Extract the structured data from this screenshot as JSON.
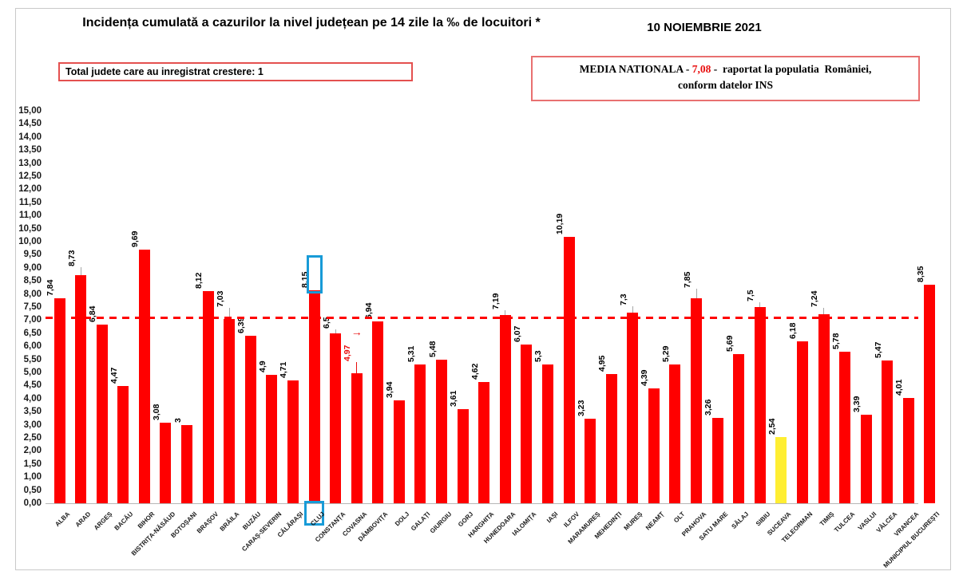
{
  "header": {
    "title": "Incidența cumulată a cazurilor la nivel județean pe 14 zile la ‰ de locuitori *",
    "date": "10 NOIEMBRIE 2021",
    "growth_box": "Total judete care au inregistrat crestere: 1",
    "media": {
      "part1": "MEDIA NATIONALA - ",
      "value": "7,08",
      "part3": " -  raportat la populatia  României,",
      "line2": "conform datelor INS"
    }
  },
  "chart_data": {
    "type": "bar",
    "title": "Incidența cumulată a cazurilor la nivel județean pe 14 zile la ‰ de locuitori *",
    "date_label": "10 NOIEMBRIE 2021",
    "xlabel": "",
    "ylabel": "",
    "ylim": [
      0,
      15
    ],
    "ytick_step": 0.5,
    "grid": false,
    "legend": "none",
    "average_line": 7.08,
    "bar_color": "#ff0000",
    "yellow_bar_color": "#ffee32",
    "highlight_box_color": "#189bd7",
    "red_label_color": "#e80d0d",
    "arrow_glyph": "→",
    "bars": [
      {
        "county": "ALBA",
        "value": 7.84,
        "label": "7,84"
      },
      {
        "county": "ARAD",
        "value": 8.73,
        "label": "8,73",
        "raise": 8
      },
      {
        "county": "ARGEȘ",
        "value": 6.84,
        "label": "6,84"
      },
      {
        "county": "BACĂU",
        "value": 4.47,
        "label": "4,47"
      },
      {
        "county": "BIHOR",
        "value": 9.69,
        "label": "9,69"
      },
      {
        "county": "BISTRIȚA-NĂSĂUD",
        "value": 3.08,
        "label": "3,08"
      },
      {
        "county": "BOTOȘANI",
        "value": 3.0,
        "label": "3"
      },
      {
        "county": "BRAȘOV",
        "value": 8.12,
        "label": "8,12"
      },
      {
        "county": "BRĂILA",
        "value": 7.03,
        "label": "7,03",
        "raise": 12
      },
      {
        "county": "BUZĂU",
        "value": 6.39,
        "label": "6,39"
      },
      {
        "county": "CARAȘ-SEVERIN",
        "value": 4.9,
        "label": "4,9"
      },
      {
        "county": "CĂLĂRAȘI",
        "value": 4.71,
        "label": "4,71"
      },
      {
        "county": "CLUJ",
        "value": 8.15,
        "label": "8,15",
        "highlight": true
      },
      {
        "county": "CONSTANȚA",
        "value": 6.5,
        "label": "6,5",
        "raise": 3
      },
      {
        "county": "COVASNA",
        "value": 4.97,
        "label": "4,97",
        "raise": 12,
        "labelColor": "#e80d0d",
        "arrow": true
      },
      {
        "county": "DÂMBOVIȚA",
        "value": 6.94,
        "label": "6,94"
      },
      {
        "county": "DOLJ",
        "value": 3.94,
        "label": "3,94"
      },
      {
        "county": "GALAȚI",
        "value": 5.31,
        "label": "5,31"
      },
      {
        "county": "GIURGIU",
        "value": 5.48,
        "label": "5,48"
      },
      {
        "county": "GORJ",
        "value": 3.61,
        "label": "3,61"
      },
      {
        "county": "HARGHITA",
        "value": 4.62,
        "label": "4,62"
      },
      {
        "county": "HUNEDOARA",
        "value": 7.19,
        "label": "7,19",
        "raise": 4
      },
      {
        "county": "IALOMIȚA",
        "value": 6.07,
        "label": "6,07"
      },
      {
        "county": "IAȘI",
        "value": 5.3,
        "label": "5,3"
      },
      {
        "county": "ILFOV",
        "value": 10.19,
        "label": "10,19"
      },
      {
        "county": "MARAMUREȘ",
        "value": 3.23,
        "label": "3,23"
      },
      {
        "county": "MEHEDINȚI",
        "value": 4.95,
        "label": "4,95"
      },
      {
        "county": "MUREȘ",
        "value": 7.3,
        "label": "7,3",
        "raise": 6
      },
      {
        "county": "NEAMȚ",
        "value": 4.39,
        "label": "4,39"
      },
      {
        "county": "OLT",
        "value": 5.29,
        "label": "5,29"
      },
      {
        "county": "PRAHOVA",
        "value": 7.85,
        "label": "7,85",
        "raise": 10
      },
      {
        "county": "SATU MARE",
        "value": 3.26,
        "label": "3,26"
      },
      {
        "county": "SĂLAJ",
        "value": 5.69,
        "label": "5,69"
      },
      {
        "county": "SIBIU",
        "value": 7.5,
        "label": "7,5",
        "raise": 4
      },
      {
        "county": "SUCEAVA",
        "value": 2.54,
        "label": "2,54",
        "color": "#ffee32"
      },
      {
        "county": "TELEORMAN",
        "value": 6.18,
        "label": "6,18"
      },
      {
        "county": "TIMIȘ",
        "value": 7.24,
        "label": "7,24",
        "raise": 6
      },
      {
        "county": "TULCEA",
        "value": 5.78,
        "label": "5,78"
      },
      {
        "county": "VASLUI",
        "value": 3.39,
        "label": "3,39"
      },
      {
        "county": "VÂLCEA",
        "value": 5.47,
        "label": "5,47"
      },
      {
        "county": "VRANCEA",
        "value": 4.01,
        "label": "4,01"
      },
      {
        "county": "MUNICIPIUL BUCUREȘTI",
        "value": 8.35,
        "label": "8,35"
      }
    ]
  }
}
